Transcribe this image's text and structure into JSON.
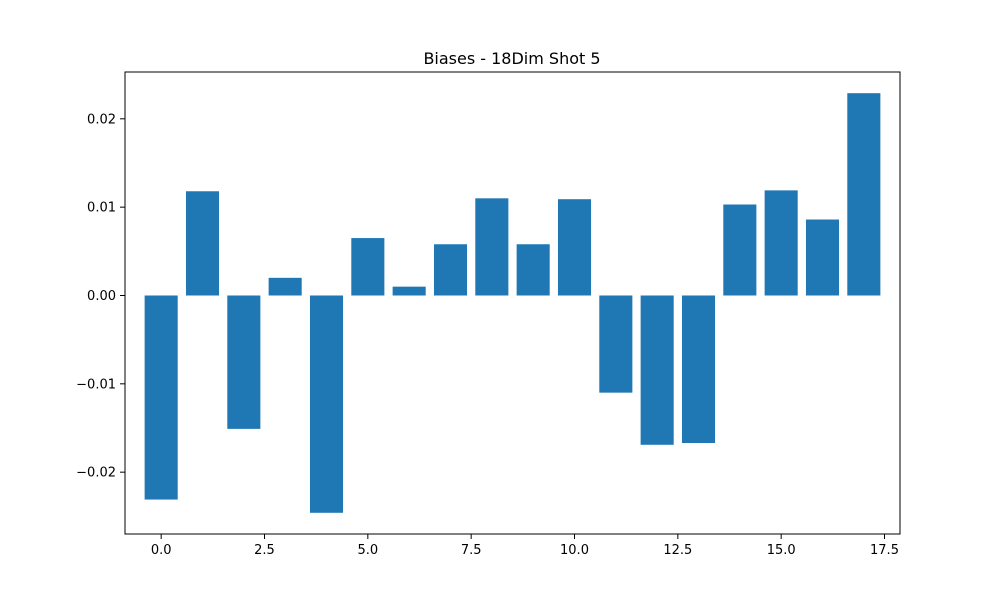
{
  "chart_data": {
    "type": "bar",
    "title": "Biases - 18Dim Shot 5",
    "xlabel": "",
    "ylabel": "",
    "x": [
      0,
      1,
      2,
      3,
      4,
      5,
      6,
      7,
      8,
      9,
      10,
      11,
      12,
      13,
      14,
      15,
      16,
      17
    ],
    "values": [
      -0.0231,
      0.0118,
      -0.0151,
      0.002,
      -0.0246,
      0.0065,
      0.001,
      0.0058,
      0.011,
      0.0058,
      0.0109,
      -0.011,
      -0.0169,
      -0.0167,
      0.0103,
      0.0119,
      0.0086,
      0.0229
    ],
    "xlim": [
      -0.875,
      17.875
    ],
    "ylim": [
      -0.027,
      0.0253
    ],
    "x_ticks": [
      0.0,
      2.5,
      5.0,
      7.5,
      10.0,
      12.5,
      15.0,
      17.5
    ],
    "x_tick_labels": [
      "0.0",
      "2.5",
      "5.0",
      "7.5",
      "10.0",
      "12.5",
      "15.0",
      "17.5"
    ],
    "y_ticks": [
      -0.02,
      -0.01,
      0.0,
      0.01,
      0.02
    ],
    "y_tick_labels": [
      "−0.02",
      "−0.01",
      "0.00",
      "0.01",
      "0.02"
    ],
    "bar_color": "#1f77b4",
    "grid": false,
    "legend": "none"
  }
}
